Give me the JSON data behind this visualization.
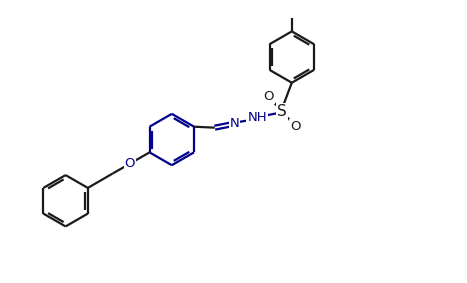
{
  "bg_color": "#ffffff",
  "bond_color": "#1a1a1a",
  "heteroatom_color": "#00008B",
  "line_width": 1.6,
  "dbo": 0.04,
  "figsize": [
    4.67,
    2.83
  ],
  "dpi": 100,
  "xlim": [
    -0.5,
    9.5
  ],
  "ylim": [
    -0.2,
    5.8
  ]
}
